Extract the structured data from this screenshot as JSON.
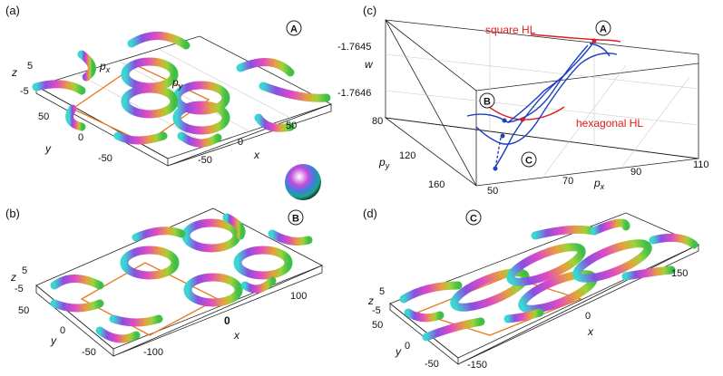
{
  "panels": {
    "a": {
      "label": "(a)",
      "badge": "A",
      "zlabel": "z",
      "ztick_top": "5",
      "ztick_bottom": "-5",
      "ylabel": "y",
      "yticks": [
        "50",
        "0",
        "-50"
      ],
      "xlabel": "x",
      "xticks": [
        "0",
        "50",
        "-50"
      ],
      "px_label": "p",
      "px_sub": "x",
      "py_label": "p",
      "py_sub": "y"
    },
    "b": {
      "label": "(b)",
      "badge": "B",
      "zlabel": "z",
      "ztick_top": "5",
      "ztick_bottom": "-5",
      "ylabel": "y",
      "yticks": [
        "50",
        "0",
        "-50"
      ],
      "xlabel": "x",
      "xticks": [
        "100",
        "0",
        "-100"
      ]
    },
    "c": {
      "label": "(c)",
      "badge_a": "A",
      "badge_b": "B",
      "badge_c": "C",
      "wlabel": "w",
      "wticks": [
        "-1.7645",
        "-1.7646"
      ],
      "py_label": "p",
      "py_sub": "y",
      "py_ticks": [
        "80",
        "120",
        "160"
      ],
      "px_label": "p",
      "px_sub": "x",
      "px_ticks": [
        "50",
        "70",
        "90",
        "110"
      ],
      "square_label": "square HL",
      "hex_label": "hexagonal HL"
    },
    "d": {
      "label": "(d)",
      "badge": "C",
      "zlabel": "z",
      "ztick_top": "5",
      "ztick_bottom": "-5",
      "ylabel": "y",
      "yticks": [
        "50",
        "0",
        "-50"
      ],
      "xlabel": "x",
      "xticks": [
        "150",
        "0",
        "-150"
      ]
    }
  },
  "colors": {
    "curve_blue": "#1f3fbf",
    "curve_red": "#e01b1b",
    "cell_orange": "#e8781e"
  }
}
